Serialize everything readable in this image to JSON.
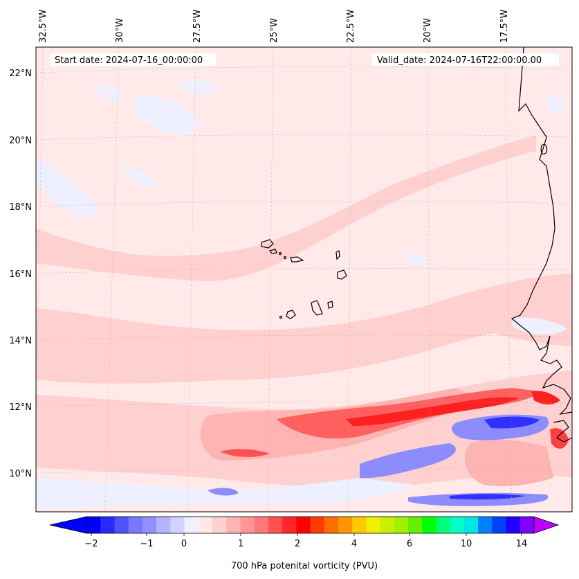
{
  "header": {
    "start_date": "Start date: 2024-07-16_00:00:00",
    "valid_date": "Valid_date: 2024-07-16T22:00:00.00"
  },
  "longitude_labels": [
    "32.5°W",
    "30°W",
    "27.5°W",
    "25°W",
    "22.5°W",
    "20°W",
    "17.5°W"
  ],
  "latitude_labels": [
    "22°N",
    "20°N",
    "18°N",
    "16°N",
    "14°N",
    "12°N",
    "10°N"
  ],
  "colorbar": {
    "label": "700 hPa potenital vorticity (PVU)",
    "tick_labels": [
      "−2",
      "−1",
      "0",
      "1",
      "2",
      "4",
      "6",
      "10",
      "14"
    ],
    "colors": [
      "#0000ff",
      "#2828ff",
      "#5050ff",
      "#7878ff",
      "#9090ff",
      "#b4b4ff",
      "#d2d2ff",
      "#f0f0ff",
      "#ffe8e8",
      "#ffd0d0",
      "#ffb4b4",
      "#ff9696",
      "#ff7878",
      "#ff5050",
      "#ff2828",
      "#ff0000",
      "#ff3c00",
      "#ff6e00",
      "#ff9600",
      "#ffc800",
      "#f0f000",
      "#c8f000",
      "#a0f000",
      "#64f000",
      "#00ff00",
      "#00ff78",
      "#00ffc8",
      "#00e6e6",
      "#0080ff",
      "#0040ff",
      "#2000ff",
      "#8000ff"
    ],
    "under_color": "#0000ff",
    "over_color": "#c000ff"
  },
  "map_colors": {
    "background": "#ffe9e9",
    "light_pink": "#ffd0d0",
    "pink": "#ffb4b4",
    "red": "#ff2828",
    "light_blue": "#eef0ff",
    "blue": "#8080ff",
    "dark_blue": "#3030ff",
    "coast": "#000000"
  }
}
